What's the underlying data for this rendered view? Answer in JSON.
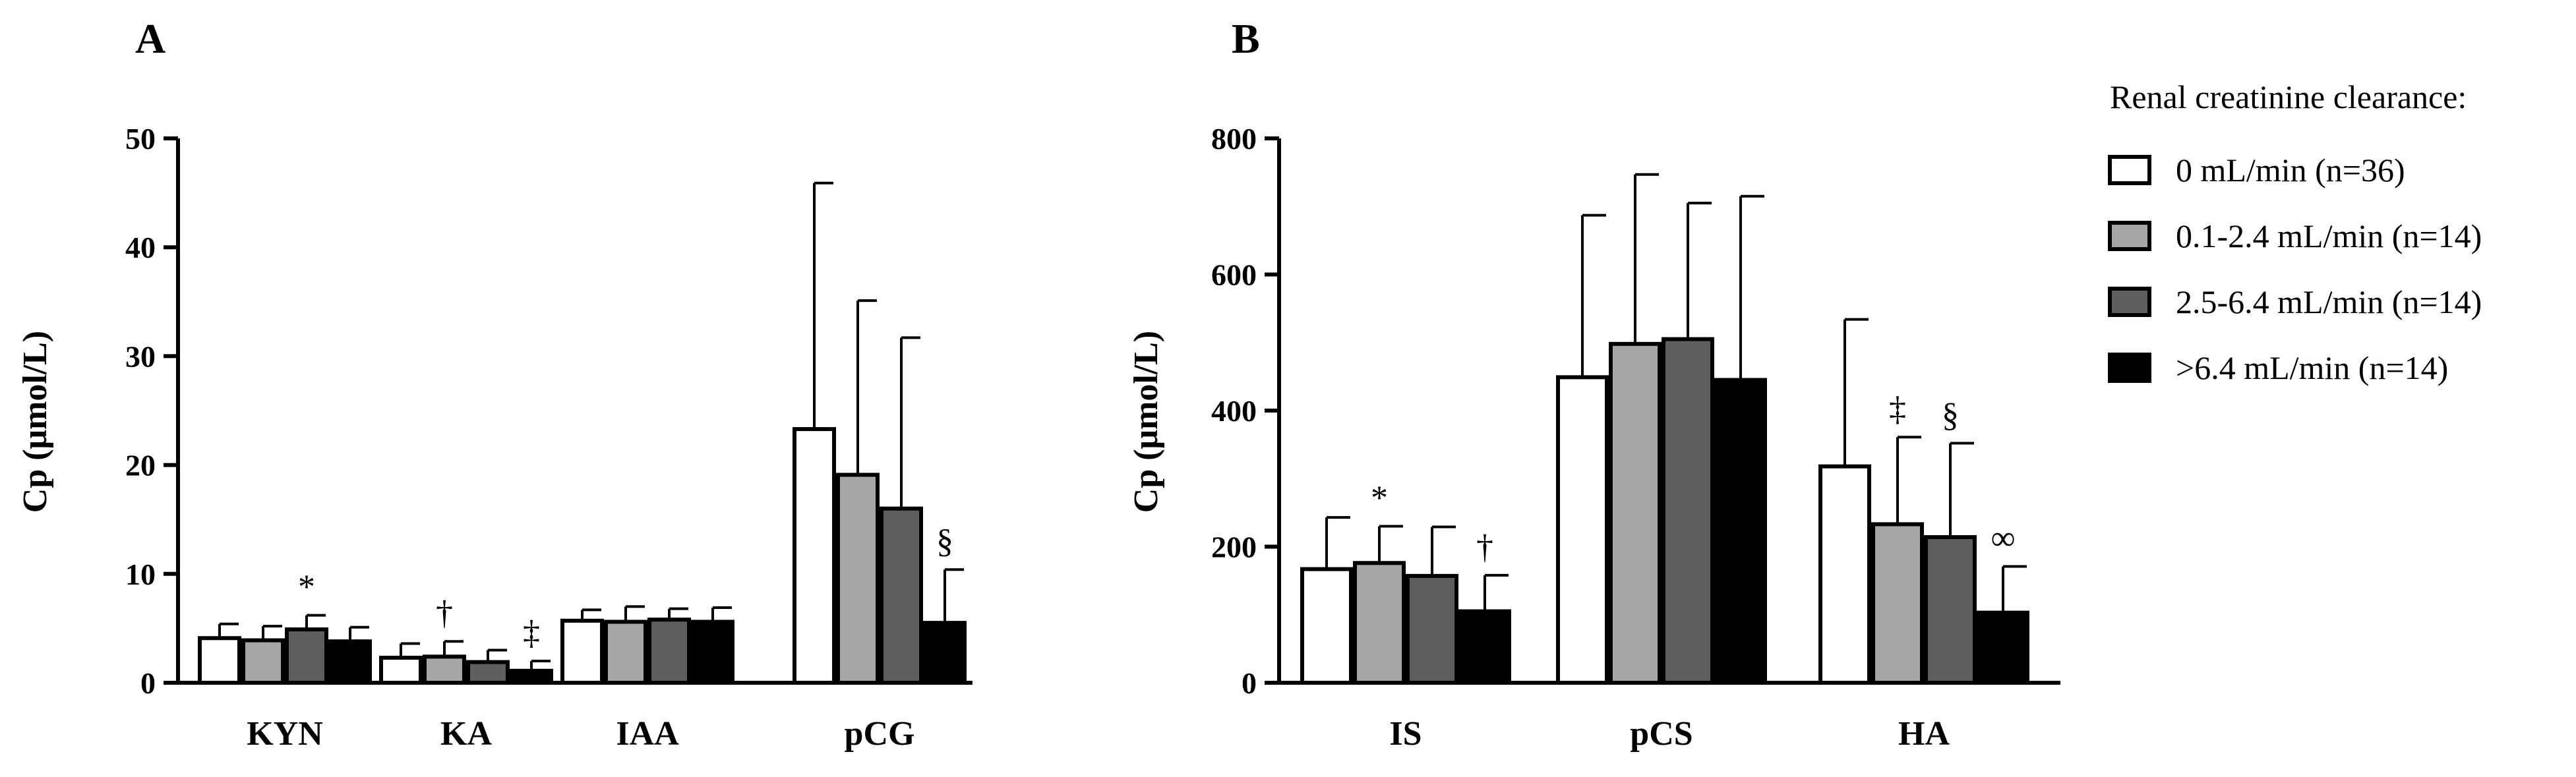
{
  "colors": {
    "series": [
      "#ffffff",
      "#a6a6a6",
      "#5e5e5e",
      "#000000"
    ],
    "edge": "#000000"
  },
  "legend": {
    "title": "Renal creatinine clearance:",
    "placement": "right",
    "items": [
      "0 mL/min  (n=36)",
      "0.1-2.4 mL/min (n=14)",
      "2.5-6.4 mL/min (n=14)",
      ">6.4 mL/min (n=14)"
    ]
  },
  "chart_data": [
    {
      "type": "bar",
      "panel_label": "A",
      "ylabel": "Cp (μmol/L)",
      "ylim": [
        0,
        50
      ],
      "yticks": [
        0,
        10,
        20,
        30,
        40,
        50
      ],
      "categories": [
        "KYN",
        "KA",
        "IAA",
        "pCG"
      ],
      "series": [
        {
          "name": "0 mL/min  (n=36)",
          "values": [
            4.1,
            2.3,
            5.7,
            23.3
          ],
          "errors": [
            1.3,
            1.3,
            1.0,
            22.6
          ]
        },
        {
          "name": "0.1-2.4 mL/min (n=14)",
          "values": [
            3.9,
            2.4,
            5.6,
            19.1
          ],
          "errors": [
            1.3,
            1.4,
            1.4,
            16.0
          ]
        },
        {
          "name": "2.5-6.4 mL/min (n=14)",
          "values": [
            4.9,
            1.9,
            5.8,
            16.0
          ],
          "errors": [
            1.3,
            1.1,
            1.0,
            15.7
          ]
        },
        {
          "name": ">6.4 mL/min (n=14)",
          "values": [
            3.8,
            1.1,
            5.6,
            5.5
          ],
          "errors": [
            1.3,
            0.9,
            1.3,
            4.9
          ]
        }
      ],
      "annotations": [
        {
          "category": "KYN",
          "series": 2,
          "text": "*"
        },
        {
          "category": "KA",
          "series": 1,
          "text": "†"
        },
        {
          "category": "KA",
          "series": 3,
          "text": "‡"
        },
        {
          "category": "pCG",
          "series": 3,
          "text": "§"
        }
      ]
    },
    {
      "type": "bar",
      "panel_label": "B",
      "ylabel": "Cp (μmol/L)",
      "ylim": [
        0,
        800
      ],
      "yticks": [
        0,
        200,
        400,
        600,
        800
      ],
      "categories": [
        "IS",
        "pCS",
        "HA"
      ],
      "series": [
        {
          "name": "0 mL/min  (n=36)",
          "values": [
            167,
            449,
            318
          ],
          "errors": [
            76,
            238,
            216
          ]
        },
        {
          "name": "0.1-2.4 mL/min (n=14)",
          "values": [
            176,
            498,
            233
          ],
          "errors": [
            54,
            249,
            128
          ]
        },
        {
          "name": "2.5-6.4 mL/min (n=14)",
          "values": [
            157,
            505,
            214
          ],
          "errors": [
            72,
            200,
            138
          ]
        },
        {
          "name": ">6.4 mL/min (n=14)",
          "values": [
            105,
            445,
            103
          ],
          "errors": [
            53,
            270,
            68
          ]
        }
      ],
      "annotations": [
        {
          "category": "IS",
          "series": 1,
          "text": "*"
        },
        {
          "category": "IS",
          "series": 3,
          "text": "†"
        },
        {
          "category": "HA",
          "series": 1,
          "text": "‡"
        },
        {
          "category": "HA",
          "series": 2,
          "text": "§"
        },
        {
          "category": "HA",
          "series": 3,
          "text": "∞"
        }
      ]
    }
  ]
}
